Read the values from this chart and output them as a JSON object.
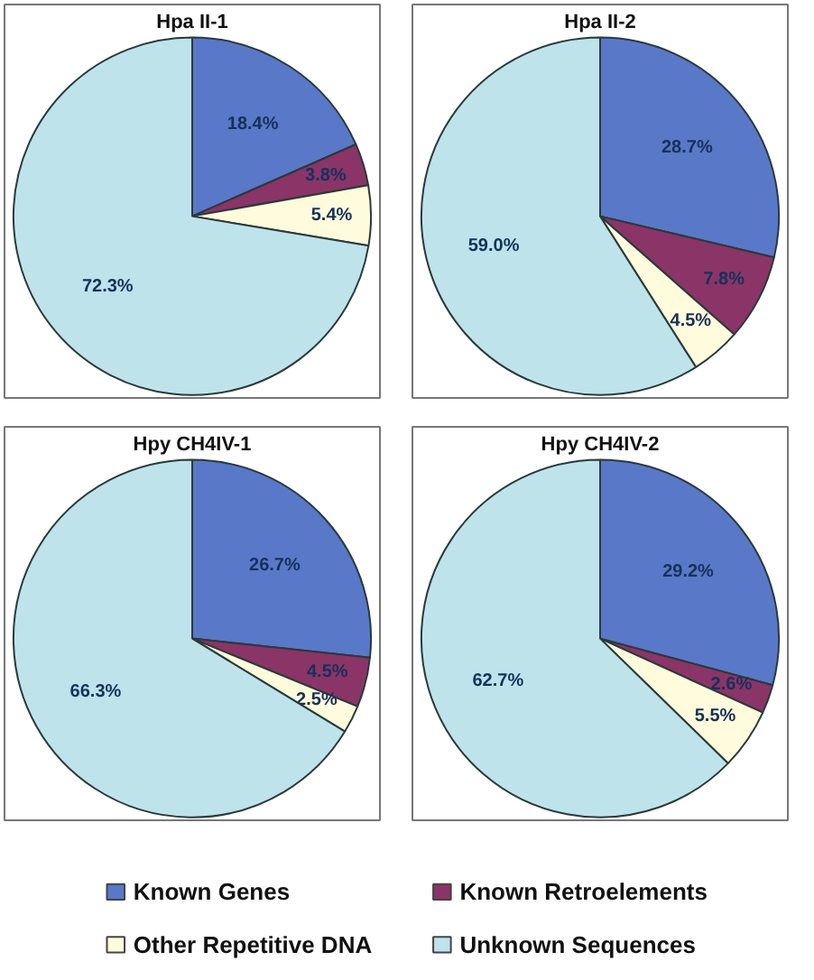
{
  "chart_data": [
    {
      "type": "pie",
      "title": "Hpa II-1",
      "categories": [
        "Known Genes",
        "Known Retroelements",
        "Other Repetitive DNA",
        "Unknown Sequences"
      ],
      "values": [
        18.4,
        3.8,
        5.4,
        72.3
      ],
      "value_labels": [
        "18.4%",
        "3.8%",
        "5.4%",
        "72.3%"
      ],
      "colors": [
        "#5a78c8",
        "#8b3468",
        "#fffbdc",
        "#bfe3eb"
      ],
      "legend": "bottom"
    },
    {
      "type": "pie",
      "title": "Hpa II-2",
      "categories": [
        null,
        null,
        null,
        null
      ],
      "values": [
        28.7,
        7.8,
        4.5,
        59.0
      ],
      "value_labels": [
        "28.7%",
        "7.8%",
        "4.5%",
        "59.0%"
      ],
      "colors": [
        "#5a78c8",
        "#8b3468",
        "#fffbdc",
        "#bfe3eb"
      ]
    },
    {
      "type": "pie",
      "title": "Hpy CH4IV-1",
      "categories": [
        null,
        null,
        null,
        null
      ],
      "values": [
        26.7,
        4.5,
        2.5,
        66.3
      ],
      "value_labels": [
        "26.7%",
        "4.5%",
        "2.5%",
        "66.3%"
      ],
      "colors": [
        "#5a78c8",
        "#8b3468",
        "#fffbdc",
        "#bfe3eb"
      ]
    },
    {
      "type": "pie",
      "title": "Hpy CH4IV-2",
      "categories": [
        null,
        null,
        null,
        null
      ],
      "values": [
        29.2,
        2.6,
        5.5,
        62.7
      ],
      "value_labels": [
        "29.2%",
        "2.6%",
        "5.5%",
        "62.7%"
      ],
      "colors": [
        "#5a78c8",
        "#8b3468",
        "#fffbdc",
        "#bfe3eb"
      ]
    }
  ]
}
